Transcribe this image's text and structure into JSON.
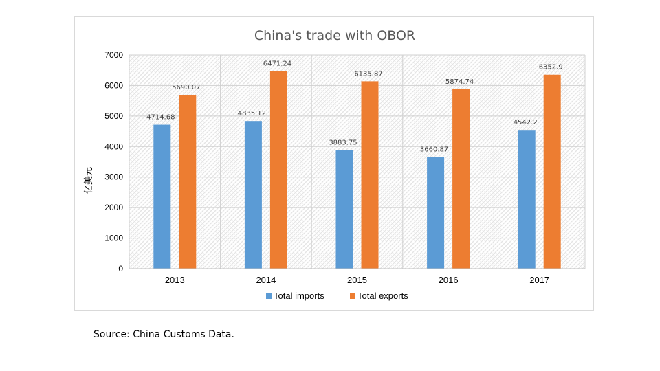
{
  "chart_data": {
    "type": "bar",
    "title": "China's trade with OBOR",
    "ylabel": "亿美元",
    "xlabel": "",
    "categories": [
      "2013",
      "2014",
      "2015",
      "2016",
      "2017"
    ],
    "series": [
      {
        "name": "Total imports",
        "color": "#5b9bd5",
        "values": [
          4714.68,
          4835.12,
          3883.75,
          3660.87,
          4542.2
        ],
        "labels": [
          "4714.68",
          "4835.12",
          "3883.75",
          "3660.87",
          "4542.2"
        ]
      },
      {
        "name": "Total exports",
        "color": "#ed7d31",
        "values": [
          5690.07,
          6471.24,
          6135.87,
          5874.74,
          6352.9
        ],
        "labels": [
          "5690.07",
          "6471.24",
          "6135.87",
          "5874.74",
          "6352.9"
        ]
      }
    ],
    "ylim": [
      0,
      7000
    ],
    "yticks": [
      "0",
      "1000",
      "2000",
      "3000",
      "4000",
      "5000",
      "6000",
      "7000"
    ],
    "grid": true,
    "legend_position": "bottom",
    "plot_background": "hatched"
  },
  "source_note": "Source: China Customs Data."
}
